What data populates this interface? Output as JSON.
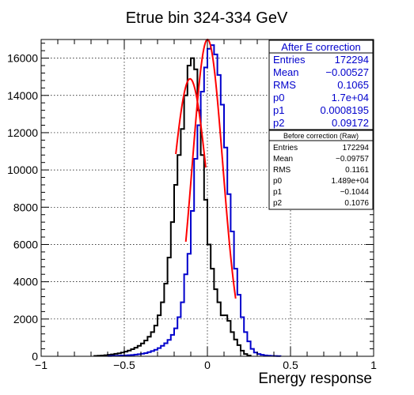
{
  "chart_data": {
    "type": "histogram",
    "title": "Etrue bin 324-334 GeV",
    "xlabel": "Energy response",
    "ylabel": "",
    "xlim": [
      -1,
      1
    ],
    "ylim": [
      0,
      17000
    ],
    "x_ticks": [
      "−1",
      "−0.5",
      "0",
      "0.5",
      "1"
    ],
    "x_tick_values": [
      -1,
      -0.5,
      0,
      0.5,
      1
    ],
    "y_ticks": [
      "0",
      "2000",
      "4000",
      "6000",
      "8000",
      "10000",
      "12000",
      "14000",
      "16000"
    ],
    "y_tick_values": [
      0,
      2000,
      4000,
      6000,
      8000,
      10000,
      12000,
      14000,
      16000
    ],
    "grid": true,
    "bin_width": 0.02,
    "series": [
      {
        "name": "Before correction (Raw)",
        "color": "#000000",
        "bin_low": [
          -0.68,
          -0.66,
          -0.64,
          -0.62,
          -0.6,
          -0.58,
          -0.56,
          -0.54,
          -0.52,
          -0.5,
          -0.48,
          -0.46,
          -0.44,
          -0.42,
          -0.4,
          -0.38,
          -0.36,
          -0.34,
          -0.32,
          -0.3,
          -0.28,
          -0.26,
          -0.24,
          -0.22,
          -0.2,
          -0.18,
          -0.16,
          -0.14,
          -0.12,
          -0.1,
          -0.08,
          -0.06,
          -0.04,
          -0.02,
          0.0,
          0.02,
          0.04,
          0.06,
          0.08,
          0.1,
          0.12,
          0.14,
          0.16,
          0.18,
          0.2,
          0.22,
          0.24
        ],
        "counts": [
          20,
          30,
          40,
          60,
          80,
          100,
          130,
          160,
          200,
          250,
          310,
          380,
          460,
          560,
          690,
          850,
          1050,
          1300,
          1650,
          2200,
          2900,
          3900,
          5300,
          7200,
          9200,
          10800,
          12200,
          14000,
          15600,
          16000,
          15400,
          13200,
          10800,
          8400,
          6000,
          4700,
          3600,
          2900,
          2200,
          2200,
          1900,
          1300,
          900,
          600,
          300,
          120,
          40
        ]
      },
      {
        "name": "After E correction",
        "color": "#0000cc",
        "bin_low": [
          -0.6,
          -0.58,
          -0.56,
          -0.54,
          -0.52,
          -0.5,
          -0.48,
          -0.46,
          -0.44,
          -0.42,
          -0.4,
          -0.38,
          -0.36,
          -0.34,
          -0.32,
          -0.3,
          -0.28,
          -0.26,
          -0.24,
          -0.22,
          -0.2,
          -0.18,
          -0.16,
          -0.14,
          -0.12,
          -0.1,
          -0.08,
          -0.06,
          -0.04,
          -0.02,
          0.0,
          0.02,
          0.04,
          0.06,
          0.08,
          0.1,
          0.12,
          0.14,
          0.16,
          0.18,
          0.2,
          0.22,
          0.24,
          0.26,
          0.28,
          0.3,
          0.32,
          0.34,
          0.36,
          0.38,
          0.4,
          0.42
        ],
        "counts": [
          15,
          20,
          25,
          30,
          40,
          50,
          60,
          70,
          90,
          110,
          140,
          170,
          220,
          280,
          350,
          440,
          560,
          700,
          880,
          1150,
          1500,
          2100,
          2900,
          4400,
          5500,
          7800,
          10600,
          12400,
          14200,
          15500,
          16500,
          16700,
          16200,
          15100,
          13500,
          11200,
          8700,
          6700,
          4700,
          3300,
          2100,
          1300,
          800,
          400,
          200,
          120,
          80,
          50,
          30,
          20,
          15,
          10
        ]
      }
    ],
    "fits": [
      {
        "name": "Before correction (Raw) fit",
        "color": "#ff0000",
        "p0": 14890,
        "p1": -0.1044,
        "p2": 0.1076,
        "x_range": [
          -0.19,
          -0.01
        ]
      },
      {
        "name": "After E correction fit",
        "color": "#ff0000",
        "p0": 17000,
        "p1": 0.0008195,
        "p2": 0.09172,
        "x_range": [
          -0.13,
          0.17
        ]
      }
    ],
    "stat_boxes": [
      {
        "title": "After E correction",
        "color": "#0000cc",
        "rows": [
          {
            "label": "Entries",
            "value": "172294"
          },
          {
            "label": "Mean",
            "value": "−0.00527"
          },
          {
            "label": "RMS",
            "value": "0.1065"
          },
          {
            "label": "p0",
            "value": "1.7e+04"
          },
          {
            "label": "p1",
            "value": "0.0008195"
          },
          {
            "label": "p2",
            "value": "0.09172"
          }
        ]
      },
      {
        "title": "Before correction (Raw)",
        "color": "#000000",
        "rows": [
          {
            "label": "Entries",
            "value": "172294"
          },
          {
            "label": "Mean",
            "value": "−0.09757"
          },
          {
            "label": "RMS",
            "value": "0.1161"
          },
          {
            "label": "p0",
            "value": "1.489e+04"
          },
          {
            "label": "p1",
            "value": "−0.1044"
          },
          {
            "label": "p2",
            "value": "0.1076"
          }
        ]
      }
    ]
  }
}
